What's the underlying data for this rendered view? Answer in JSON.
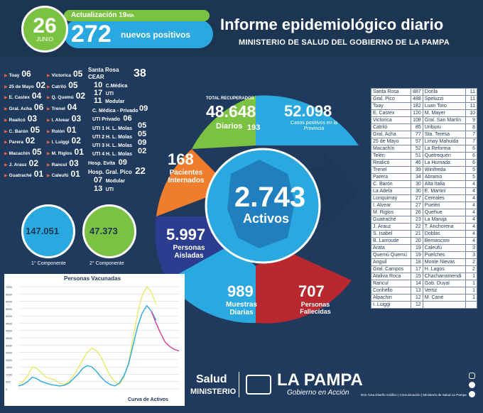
{
  "header": {
    "day": "26",
    "month": "JUNIO",
    "update_label": "Actualización",
    "update_time": "19",
    "update_time_suffix": "45h",
    "positives": "272",
    "positives_label": "nuevos positivos",
    "title": "Informe epidemiológico diario",
    "subtitle": "MINISTERIO DE SALUD DEL GOBIERNO DE LA PAMPA"
  },
  "localities_left": [
    {
      "name": "Toay",
      "value": "06"
    },
    {
      "name": "25 de Mayo",
      "value": "02"
    },
    {
      "name": "E. Castex",
      "value": "04"
    },
    {
      "name": "Gral. Acha",
      "value": "06"
    },
    {
      "name": "Realicó",
      "value": "03"
    },
    {
      "name": "C. Barón",
      "value": "05"
    },
    {
      "name": "Parera",
      "value": "02"
    },
    {
      "name": "Macachín",
      "value": "05"
    },
    {
      "name": "J. Arauz",
      "value": "02"
    },
    {
      "name": "Guatraché",
      "value": "01"
    }
  ],
  "localities_mid": [
    {
      "name": "Victorica",
      "value": "05"
    },
    {
      "name": "Catriló",
      "value": "05"
    },
    {
      "name": "Q. Quemú",
      "value": "02"
    },
    {
      "name": "Trenel",
      "value": "04"
    },
    {
      "name": "I. Alvear",
      "value": "03"
    },
    {
      "name": "Rolón",
      "value": "01"
    },
    {
      "name": "I. Luiggi",
      "value": "02"
    },
    {
      "name": "M. Riglos",
      "value": "01"
    },
    {
      "name": "Rancul",
      "value": "03"
    },
    {
      "name": "Caleufú",
      "value": "01"
    }
  ],
  "santa_rosa": {
    "title": "Santa Rosa",
    "cear_label": "CEAR",
    "cear": "38",
    "c_medica": "10",
    "c_medica_label": "C.Médica",
    "uti": "17",
    "uti_label": "UTI",
    "modular": "11",
    "modular_label": "Modular",
    "c_medica_priv_label": "C. Médica - Privado",
    "c_medica_priv": "09",
    "uti_priv_label": "UTI Privado",
    "uti_priv": "06",
    "uti1_label": "UTI 1 H. L. Molas",
    "uti1": "05",
    "uti2_label": "UTI 2 H. L. Molas",
    "uti2": "05",
    "uti3_label": "UTI 3 H. L. Molas",
    "uti3": "09",
    "uti4_label": "UTI 4 H. L. Molas",
    "uti4": "02",
    "evita_label": "Hosp. Evita",
    "evita": "09",
    "pico_label": "Hosp. Gral. Pico",
    "pico": "22",
    "pico_modular": "07",
    "pico_modular_label": "Modular",
    "pico_uti": "13",
    "pico_uti_label": "UTI"
  },
  "components": {
    "first": "147.051",
    "first_label": "1° Componente",
    "second": "47.373",
    "second_label": "2° Componente"
  },
  "stats": {
    "recovered_label": "TOTAL RECUPERADOS",
    "recovered": "48.648",
    "daily_label": "Diarios",
    "daily": "193",
    "cases": "52.098",
    "cases_label": "Casos positivos en la Provincia",
    "hospitalized": "168",
    "hospitalized_label": "Pacientes Internados",
    "active": "2.743",
    "active_label": "Activos",
    "isolated": "5.997",
    "isolated_label": "Personas Aisladas",
    "samples": "989",
    "samples_label": "Muestras Diarias",
    "deceased": "707",
    "deceased_label": "Personas Fallecidas"
  },
  "chart_data": {
    "type": "line",
    "title": "Personas Vacunadas",
    "xlabel": "Curva de Activos",
    "ylim": [
      0,
      7000
    ],
    "yticks": [
      "7000",
      "6500",
      "6000",
      "5500",
      "5000",
      "4500",
      "4000",
      "3500",
      "3000",
      "2500",
      "2000",
      "1500",
      "1000",
      "500",
      "0"
    ],
    "series": [
      {
        "color": "#e8e86a",
        "values": [
          300,
          500,
          900,
          1500,
          1400,
          1100,
          800,
          700,
          600,
          400,
          300,
          500,
          900,
          1400,
          2000,
          2500,
          2800,
          2600,
          2200,
          1500,
          900,
          500,
          300,
          800,
          1800,
          3500,
          5200,
          6400,
          7000,
          6600,
          5800
        ]
      },
      {
        "color": "#29a9e0",
        "values": [
          200,
          300,
          500,
          800,
          700,
          500,
          400,
          300,
          250,
          200,
          250,
          400,
          700,
          1000,
          1400,
          1600,
          1500,
          1200,
          800,
          500,
          300,
          200,
          400,
          900,
          1700,
          3000,
          4300,
          5200,
          5700,
          5300,
          4700
        ]
      },
      {
        "color": "#d63b93",
        "values": [
          null,
          null,
          null,
          null,
          null,
          null,
          null,
          null,
          null,
          null,
          null,
          null,
          null,
          null,
          null,
          null,
          null,
          null,
          null,
          null,
          null,
          null,
          null,
          null,
          null,
          null,
          null,
          null,
          null,
          5300,
          4500,
          3800,
          3200,
          2900,
          2700,
          2600
        ]
      }
    ]
  },
  "table_left": [
    [
      "Santa Rosa",
      "887"
    ],
    [
      "Gral. Pico",
      "488"
    ],
    [
      "Toay",
      "182"
    ],
    [
      "E. Castex",
      "120"
    ],
    [
      "Victorica",
      "108"
    ],
    [
      "Catriló",
      "85"
    ],
    [
      "Gral. Acha",
      "77"
    ],
    [
      "25 de Mayo",
      "57"
    ],
    [
      "Macachín",
      "52"
    ],
    [
      "Telén",
      "51"
    ],
    [
      "Realicó",
      "46"
    ],
    [
      "Trenel",
      "39"
    ],
    [
      "Parera",
      "34"
    ],
    [
      "C. Barón",
      "30"
    ],
    [
      "La Adela",
      "30"
    ],
    [
      "Lonquimay",
      "27"
    ],
    [
      "I. Alvear",
      "27"
    ],
    [
      "M. Riglos",
      "26"
    ],
    [
      "Guatraché",
      "23"
    ],
    [
      "J. Arauz",
      "22"
    ],
    [
      "S. Isabel",
      "21"
    ],
    [
      "B. Larroude",
      "20"
    ],
    [
      "Arata",
      "19"
    ],
    [
      "Quemú Quemú",
      "19"
    ],
    [
      "Anguil",
      "18"
    ],
    [
      "Gral. Campos",
      "17"
    ],
    [
      "Ataliva Roca",
      "15"
    ],
    [
      "Rancul",
      "14"
    ],
    [
      "Conhello",
      "13"
    ],
    [
      "Alpachiri",
      "12"
    ],
    [
      "I. Luiggi",
      "12"
    ]
  ],
  "table_right": [
    [
      "Dorila",
      "11"
    ],
    [
      "Speluzzi",
      "11"
    ],
    [
      "Luan Toro",
      "11"
    ],
    [
      "M. Mayer",
      "10"
    ],
    [
      "Gral. San Martín",
      "9"
    ],
    [
      "Uriburu",
      "8"
    ],
    [
      "Sta. Teresa",
      "7"
    ],
    [
      "Limay Mahuida",
      "7"
    ],
    [
      "La Reforma",
      "6"
    ],
    [
      "Quetrequén",
      "6"
    ],
    [
      "La Humada",
      "6"
    ],
    [
      "Winifreda",
      "5"
    ],
    [
      "Abramo",
      "5"
    ],
    [
      "Alta Italia",
      "4"
    ],
    [
      "E. Martini",
      "4"
    ],
    [
      "Cereales",
      "4"
    ],
    [
      "Puelén",
      "4"
    ],
    [
      "Quehue",
      "4"
    ],
    [
      "La Maruja",
      "4"
    ],
    [
      "T. Anchorena",
      "4"
    ],
    [
      "Doblas",
      "4"
    ],
    [
      "Bernasconi",
      "4"
    ],
    [
      "Caleufú",
      "3"
    ],
    [
      "Puelches",
      "3"
    ],
    [
      "Monte Nievas",
      "2"
    ],
    [
      "H. Lagos",
      "2"
    ],
    [
      "Chacharramendi",
      "1"
    ],
    [
      "Gob. Duval",
      "1"
    ],
    [
      "Vertiz",
      "1"
    ],
    [
      "M. Cané",
      "1"
    ],
    [
      "",
      ""
    ]
  ],
  "footer": {
    "salud": "Salud",
    "ministerio": "MINISTERIO",
    "brand": "LA PAMPA",
    "brand_sub": "Gobierno en Acción",
    "credit": "DGI Área Diseño Gráfico | Comunicación | Ministerio de Salud La Pampa"
  }
}
